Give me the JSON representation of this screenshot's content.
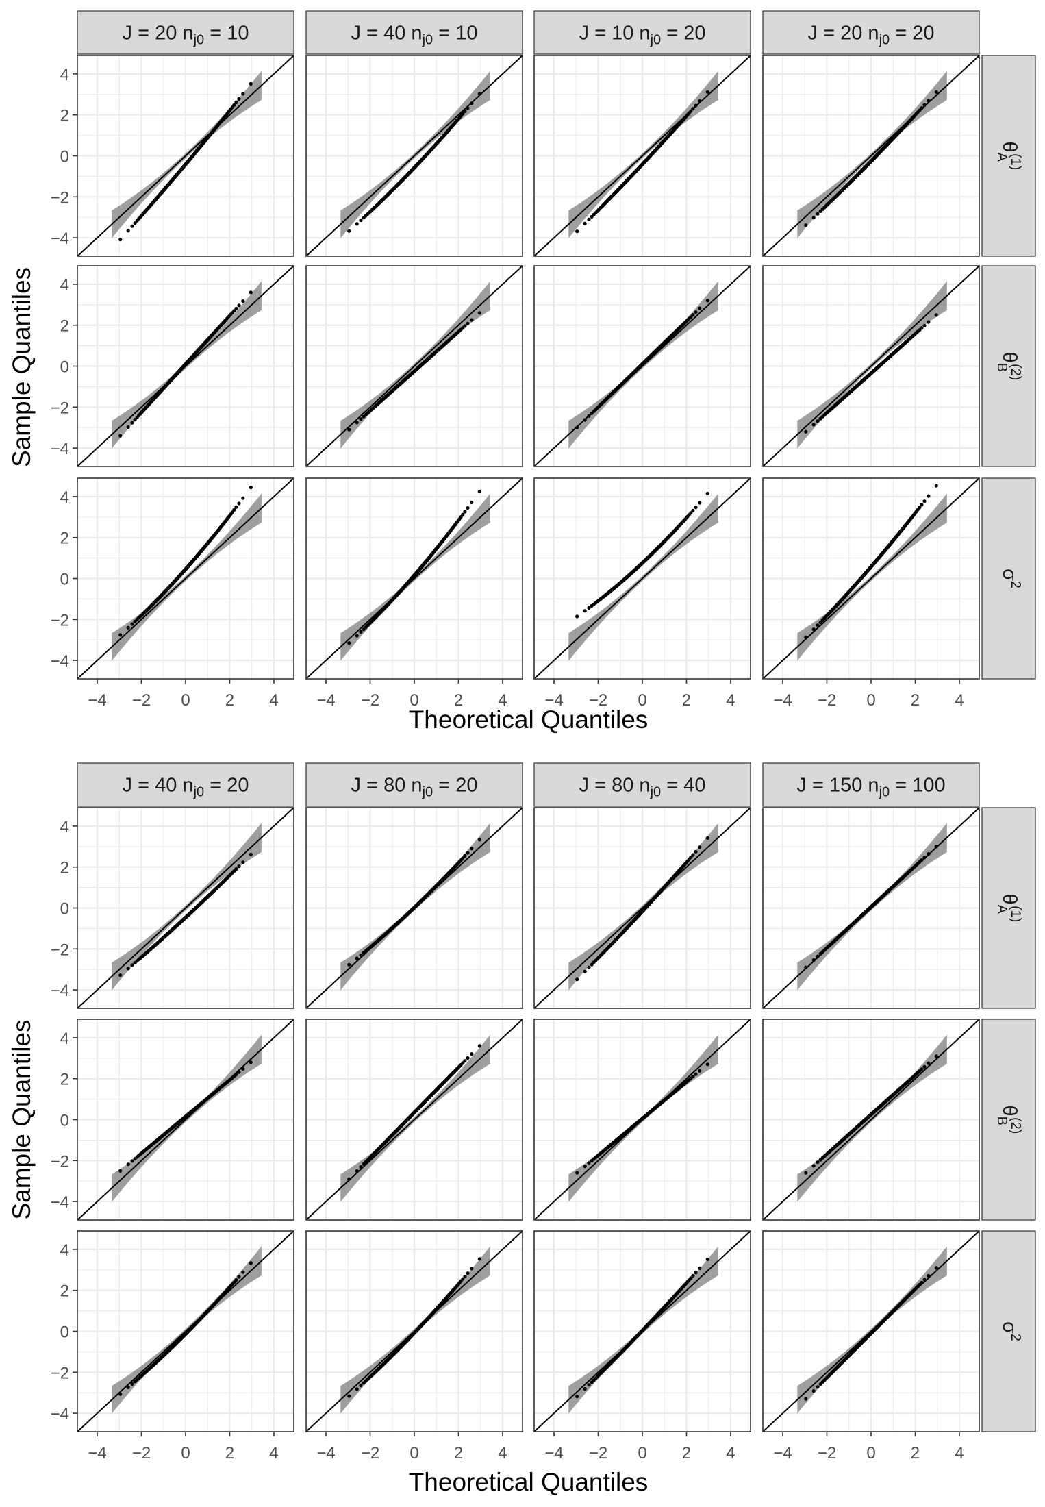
{
  "axes": {
    "xlabel": "Theoretical Quantiles",
    "ylabel": "Sample Quantiles"
  },
  "panels": [
    {
      "strips": [
        {
          "j_label": "J",
          "j_value": "20",
          "n_label": "n",
          "n_sub": "j0",
          "n_value": "10"
        },
        {
          "j_label": "J",
          "j_value": "40",
          "n_label": "n",
          "n_sub": "j0",
          "n_value": "10"
        },
        {
          "j_label": "J",
          "j_value": "10",
          "n_label": "n",
          "n_sub": "j0",
          "n_value": "20"
        },
        {
          "j_label": "J",
          "j_value": "20",
          "n_label": "n",
          "n_sub": "j0",
          "n_value": "20"
        }
      ],
      "rows": [
        {
          "sym": "θ",
          "sub": "A",
          "sup": "(1)"
        },
        {
          "sym": "θ",
          "sub": "B",
          "sup": "(2)"
        },
        {
          "sym": "σ",
          "sub": "",
          "sup": "2"
        }
      ],
      "x_ticks": [
        "−4",
        "−2",
        "0",
        "2",
        "4"
      ],
      "y_ticks": [
        "−4",
        "−2",
        "0",
        "2",
        "4"
      ]
    },
    {
      "strips": [
        {
          "j_label": "J",
          "j_value": "40",
          "n_label": "n",
          "n_sub": "j0",
          "n_value": "20"
        },
        {
          "j_label": "J",
          "j_value": "80",
          "n_label": "n",
          "n_sub": "j0",
          "n_value": "20"
        },
        {
          "j_label": "J",
          "j_value": "80",
          "n_label": "n",
          "n_sub": "j0",
          "n_value": "40"
        },
        {
          "j_label": "J",
          "j_value": "150",
          "n_label": "n",
          "n_sub": "j0",
          "n_value": "100"
        }
      ],
      "rows": [
        {
          "sym": "θ",
          "sub": "A",
          "sup": "(1)"
        },
        {
          "sym": "θ",
          "sub": "B",
          "sup": "(2)"
        },
        {
          "sym": "σ",
          "sub": "",
          "sup": "2"
        }
      ],
      "x_ticks": [
        "−4",
        "−2",
        "0",
        "2",
        "4"
      ],
      "y_ticks": [
        "−4",
        "−2",
        "0",
        "2",
        "4"
      ]
    }
  ],
  "chart_data": {
    "type": "scatter",
    "description_kind": "normal Q-Q plots with 45-degree reference line and grey confidence band",
    "xlim": [
      -4.9,
      4.9
    ],
    "ylim": [
      -4.9,
      4.9
    ],
    "grid": true,
    "colors": {
      "points": "#000000",
      "band": "#7f7f7f",
      "strip_bg": "#d9d9d9",
      "grid": "#ebebeb",
      "ref_line": "#000000"
    },
    "panels": [
      [
        [
          {
            "q_lo": -4.2,
            "q_hi": 3.4,
            "w": 1.3,
            "s": 0.1
          },
          {
            "q_lo": -3.9,
            "q_hi": 2.8,
            "w": 1.3,
            "s": 0.2
          },
          {
            "q_lo": -3.8,
            "q_hi": 3.0,
            "w": 1.2,
            "s": 0.1
          },
          {
            "q_lo": -3.5,
            "q_hi": 3.0,
            "w": 1.15,
            "s": 0.1
          }
        ],
        [
          {
            "q_lo": -3.4,
            "q_hi": 3.6,
            "w": 1.0,
            "s": 0.0
          },
          {
            "q_lo": -3.1,
            "q_hi": 2.6,
            "w": 1.0,
            "s": 0.0
          },
          {
            "q_lo": -3.0,
            "q_hi": 3.2,
            "w": 1.0,
            "s": 0.0
          },
          {
            "q_lo": -3.2,
            "q_hi": 2.5,
            "w": 1.0,
            "s": 0.0
          }
        ],
        [
          {
            "q_lo": -3.1,
            "q_hi": 4.1,
            "w": 1.3,
            "s": 0.3
          },
          {
            "q_lo": -3.5,
            "q_hi": 3.9,
            "w": 1.35,
            "s": 0.3
          },
          {
            "q_lo": -2.2,
            "q_hi": 3.8,
            "w": 1.35,
            "s": 0.3
          },
          {
            "q_lo": -3.1,
            "q_hi": 4.3,
            "w": 1.2,
            "s": 0.2
          }
        ]
      ],
      [
        [
          {
            "q_lo": -3.4,
            "q_hi": 2.5,
            "w": 1.1,
            "s": 0.1
          },
          {
            "q_lo": -3.0,
            "q_hi": 3.1,
            "w": 1.2,
            "s": 0.2
          },
          {
            "q_lo": -3.6,
            "q_hi": 3.3,
            "w": 1.15,
            "s": 0.1
          },
          {
            "q_lo": -2.9,
            "q_hi": 3.0,
            "w": 1.05,
            "s": 0.0
          }
        ],
        [
          {
            "q_lo": -2.5,
            "q_hi": 2.8,
            "w": 0.95,
            "s": 0.0
          },
          {
            "q_lo": -2.9,
            "q_hi": 3.6,
            "w": 1.0,
            "s": 0.0
          },
          {
            "q_lo": -2.6,
            "q_hi": 2.7,
            "w": 0.95,
            "s": 0.0
          },
          {
            "q_lo": -2.6,
            "q_hi": 3.1,
            "w": 1.0,
            "s": 0.0
          }
        ],
        [
          {
            "q_lo": -3.3,
            "q_hi": 3.1,
            "w": 1.15,
            "s": 0.2
          },
          {
            "q_lo": -3.4,
            "q_hi": 3.3,
            "w": 1.15,
            "s": 0.2
          },
          {
            "q_lo": -3.3,
            "q_hi": 3.4,
            "w": 1.1,
            "s": 0.1
          },
          {
            "q_lo": -3.3,
            "q_hi": 3.1,
            "w": 1.0,
            "s": 0.0
          }
        ]
      ]
    ]
  }
}
